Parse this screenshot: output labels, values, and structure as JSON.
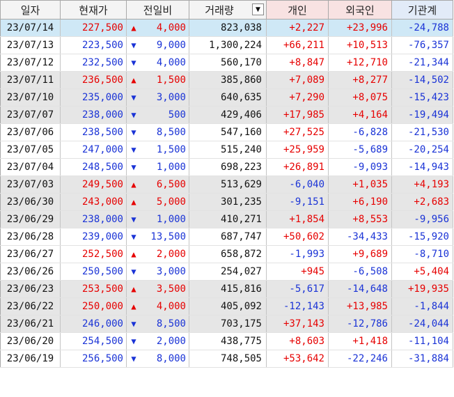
{
  "columns": [
    {
      "key": "date",
      "label": "일자"
    },
    {
      "key": "price",
      "label": "현재가"
    },
    {
      "key": "change",
      "label": "전일비"
    },
    {
      "key": "volume",
      "label": "거래량"
    },
    {
      "key": "individual",
      "label": "개인"
    },
    {
      "key": "foreign",
      "label": "외국인"
    },
    {
      "key": "institution",
      "label": "기관계"
    }
  ],
  "volume_dropdown_icon": "triangle-down-icon",
  "colors": {
    "up": "#e60000",
    "down": "#1a33d6",
    "selected_row": "#cfe8f6",
    "shaded_row": "#e6e6e6"
  },
  "rows": [
    {
      "date": "23/07/14",
      "price": "227,500",
      "dir": "up",
      "change": "4,000",
      "volume": "823,038",
      "individual": "+2,227",
      "foreign": "+23,996",
      "institution": "-24,788"
    },
    {
      "date": "23/07/13",
      "price": "223,500",
      "dir": "down",
      "change": "9,000",
      "volume": "1,300,224",
      "individual": "+66,211",
      "foreign": "+10,513",
      "institution": "-76,357"
    },
    {
      "date": "23/07/12",
      "price": "232,500",
      "dir": "down",
      "change": "4,000",
      "volume": "560,170",
      "individual": "+8,847",
      "foreign": "+12,710",
      "institution": "-21,344"
    },
    {
      "date": "23/07/11",
      "price": "236,500",
      "dir": "up",
      "change": "1,500",
      "volume": "385,860",
      "individual": "+7,089",
      "foreign": "+8,277",
      "institution": "-14,502"
    },
    {
      "date": "23/07/10",
      "price": "235,000",
      "dir": "down",
      "change": "3,000",
      "volume": "640,635",
      "individual": "+7,290",
      "foreign": "+8,075",
      "institution": "-15,423"
    },
    {
      "date": "23/07/07",
      "price": "238,000",
      "dir": "down",
      "change": "500",
      "volume": "429,406",
      "individual": "+17,985",
      "foreign": "+4,164",
      "institution": "-19,494"
    },
    {
      "date": "23/07/06",
      "price": "238,500",
      "dir": "down",
      "change": "8,500",
      "volume": "547,160",
      "individual": "+27,525",
      "foreign": "-6,828",
      "institution": "-21,530"
    },
    {
      "date": "23/07/05",
      "price": "247,000",
      "dir": "down",
      "change": "1,500",
      "volume": "515,240",
      "individual": "+25,959",
      "foreign": "-5,689",
      "institution": "-20,254"
    },
    {
      "date": "23/07/04",
      "price": "248,500",
      "dir": "down",
      "change": "1,000",
      "volume": "698,223",
      "individual": "+26,891",
      "foreign": "-9,093",
      "institution": "-14,943"
    },
    {
      "date": "23/07/03",
      "price": "249,500",
      "dir": "up",
      "change": "6,500",
      "volume": "513,629",
      "individual": "-6,040",
      "foreign": "+1,035",
      "institution": "+4,193"
    },
    {
      "date": "23/06/30",
      "price": "243,000",
      "dir": "up",
      "change": "5,000",
      "volume": "301,235",
      "individual": "-9,151",
      "foreign": "+6,190",
      "institution": "+2,683"
    },
    {
      "date": "23/06/29",
      "price": "238,000",
      "dir": "down",
      "change": "1,000",
      "volume": "410,271",
      "individual": "+1,854",
      "foreign": "+8,553",
      "institution": "-9,956"
    },
    {
      "date": "23/06/28",
      "price": "239,000",
      "dir": "down",
      "change": "13,500",
      "volume": "687,747",
      "individual": "+50,602",
      "foreign": "-34,433",
      "institution": "-15,920"
    },
    {
      "date": "23/06/27",
      "price": "252,500",
      "dir": "up",
      "change": "2,000",
      "volume": "658,872",
      "individual": "-1,993",
      "foreign": "+9,689",
      "institution": "-8,710"
    },
    {
      "date": "23/06/26",
      "price": "250,500",
      "dir": "down",
      "change": "3,000",
      "volume": "254,027",
      "individual": "+945",
      "foreign": "-6,508",
      "institution": "+5,404"
    },
    {
      "date": "23/06/23",
      "price": "253,500",
      "dir": "up",
      "change": "3,500",
      "volume": "415,816",
      "individual": "-5,617",
      "foreign": "-14,648",
      "institution": "+19,935"
    },
    {
      "date": "23/06/22",
      "price": "250,000",
      "dir": "up",
      "change": "4,000",
      "volume": "405,092",
      "individual": "-12,143",
      "foreign": "+13,985",
      "institution": "-1,844"
    },
    {
      "date": "23/06/21",
      "price": "246,000",
      "dir": "down",
      "change": "8,500",
      "volume": "703,175",
      "individual": "+37,143",
      "foreign": "-12,786",
      "institution": "-24,044"
    },
    {
      "date": "23/06/20",
      "price": "254,500",
      "dir": "down",
      "change": "2,000",
      "volume": "438,775",
      "individual": "+8,603",
      "foreign": "+1,418",
      "institution": "-11,104"
    },
    {
      "date": "23/06/19",
      "price": "256,500",
      "dir": "down",
      "change": "8,000",
      "volume": "748,505",
      "individual": "+53,642",
      "foreign": "-22,246",
      "institution": "-31,884"
    }
  ]
}
